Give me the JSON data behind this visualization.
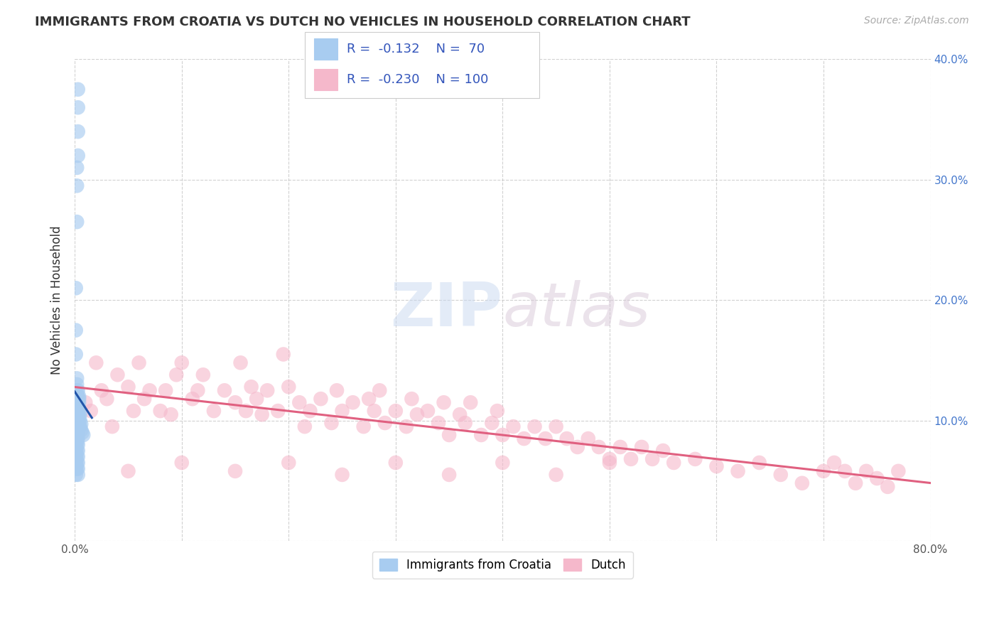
{
  "title": "IMMIGRANTS FROM CROATIA VS DUTCH NO VEHICLES IN HOUSEHOLD CORRELATION CHART",
  "source": "Source: ZipAtlas.com",
  "ylabel": "No Vehicles in Household",
  "watermark": "ZIPatlas",
  "legend_label1": "Immigrants from Croatia",
  "legend_label2": "Dutch",
  "r1": -0.132,
  "n1": 70,
  "r2": -0.23,
  "n2": 100,
  "color1": "#A8CCF0",
  "color2": "#F5B8CB",
  "line_color1": "#2255AA",
  "line_color2": "#E06080",
  "xlim": [
    0.0,
    0.8
  ],
  "ylim": [
    0.0,
    0.4
  ],
  "xticks": [
    0.0,
    0.1,
    0.2,
    0.3,
    0.4,
    0.5,
    0.6,
    0.7,
    0.8
  ],
  "yticks": [
    0.0,
    0.1,
    0.2,
    0.3,
    0.4
  ],
  "xtick_labels": [
    "0.0%",
    "",
    "",
    "",
    "",
    "",
    "",
    "",
    "80.0%"
  ],
  "ytick_labels_right": [
    "",
    "10.0%",
    "20.0%",
    "30.0%",
    "40.0%"
  ],
  "title_fontsize": 13,
  "tick_fontsize": 11,
  "croatia_x": [
    0.001,
    0.001,
    0.001,
    0.001,
    0.001,
    0.001,
    0.001,
    0.001,
    0.001,
    0.001,
    0.002,
    0.002,
    0.002,
    0.002,
    0.002,
    0.002,
    0.002,
    0.002,
    0.002,
    0.002,
    0.002,
    0.002,
    0.002,
    0.002,
    0.002,
    0.002,
    0.002,
    0.002,
    0.002,
    0.002,
    0.003,
    0.003,
    0.003,
    0.003,
    0.003,
    0.003,
    0.003,
    0.003,
    0.003,
    0.003,
    0.003,
    0.003,
    0.003,
    0.003,
    0.003,
    0.003,
    0.004,
    0.004,
    0.004,
    0.004,
    0.004,
    0.004,
    0.004,
    0.005,
    0.005,
    0.005,
    0.006,
    0.006,
    0.007,
    0.008,
    0.001,
    0.001,
    0.001,
    0.002,
    0.002,
    0.002,
    0.003,
    0.003,
    0.003,
    0.003
  ],
  "croatia_y": [
    0.055,
    0.06,
    0.065,
    0.07,
    0.075,
    0.08,
    0.085,
    0.09,
    0.095,
    0.1,
    0.06,
    0.065,
    0.07,
    0.075,
    0.08,
    0.082,
    0.085,
    0.088,
    0.09,
    0.095,
    0.1,
    0.105,
    0.108,
    0.11,
    0.115,
    0.118,
    0.12,
    0.125,
    0.13,
    0.135,
    0.055,
    0.06,
    0.065,
    0.07,
    0.075,
    0.08,
    0.085,
    0.09,
    0.095,
    0.1,
    0.105,
    0.108,
    0.11,
    0.115,
    0.12,
    0.125,
    0.095,
    0.1,
    0.105,
    0.11,
    0.115,
    0.118,
    0.12,
    0.095,
    0.1,
    0.105,
    0.092,
    0.097,
    0.09,
    0.088,
    0.21,
    0.175,
    0.155,
    0.265,
    0.295,
    0.31,
    0.375,
    0.36,
    0.34,
    0.32
  ],
  "dutch_x": [
    0.01,
    0.015,
    0.02,
    0.025,
    0.03,
    0.035,
    0.04,
    0.05,
    0.055,
    0.06,
    0.065,
    0.07,
    0.08,
    0.085,
    0.09,
    0.095,
    0.1,
    0.11,
    0.115,
    0.12,
    0.13,
    0.14,
    0.15,
    0.155,
    0.16,
    0.165,
    0.17,
    0.175,
    0.18,
    0.19,
    0.195,
    0.2,
    0.21,
    0.215,
    0.22,
    0.23,
    0.24,
    0.245,
    0.25,
    0.26,
    0.27,
    0.275,
    0.28,
    0.285,
    0.29,
    0.3,
    0.31,
    0.315,
    0.32,
    0.33,
    0.34,
    0.345,
    0.35,
    0.36,
    0.365,
    0.37,
    0.38,
    0.39,
    0.395,
    0.4,
    0.41,
    0.42,
    0.43,
    0.44,
    0.45,
    0.46,
    0.47,
    0.48,
    0.49,
    0.5,
    0.51,
    0.52,
    0.53,
    0.54,
    0.55,
    0.56,
    0.58,
    0.6,
    0.62,
    0.64,
    0.66,
    0.68,
    0.7,
    0.71,
    0.72,
    0.73,
    0.74,
    0.75,
    0.76,
    0.77,
    0.05,
    0.1,
    0.15,
    0.2,
    0.25,
    0.3,
    0.35,
    0.4,
    0.45,
    0.5
  ],
  "dutch_y": [
    0.115,
    0.108,
    0.148,
    0.125,
    0.118,
    0.095,
    0.138,
    0.128,
    0.108,
    0.148,
    0.118,
    0.125,
    0.108,
    0.125,
    0.105,
    0.138,
    0.148,
    0.118,
    0.125,
    0.138,
    0.108,
    0.125,
    0.115,
    0.148,
    0.108,
    0.128,
    0.118,
    0.105,
    0.125,
    0.108,
    0.155,
    0.128,
    0.115,
    0.095,
    0.108,
    0.118,
    0.098,
    0.125,
    0.108,
    0.115,
    0.095,
    0.118,
    0.108,
    0.125,
    0.098,
    0.108,
    0.095,
    0.118,
    0.105,
    0.108,
    0.098,
    0.115,
    0.088,
    0.105,
    0.098,
    0.115,
    0.088,
    0.098,
    0.108,
    0.088,
    0.095,
    0.085,
    0.095,
    0.085,
    0.095,
    0.085,
    0.078,
    0.085,
    0.078,
    0.068,
    0.078,
    0.068,
    0.078,
    0.068,
    0.075,
    0.065,
    0.068,
    0.062,
    0.058,
    0.065,
    0.055,
    0.048,
    0.058,
    0.065,
    0.058,
    0.048,
    0.058,
    0.052,
    0.045,
    0.058,
    0.058,
    0.065,
    0.058,
    0.065,
    0.055,
    0.065,
    0.055,
    0.065,
    0.055,
    0.065
  ]
}
